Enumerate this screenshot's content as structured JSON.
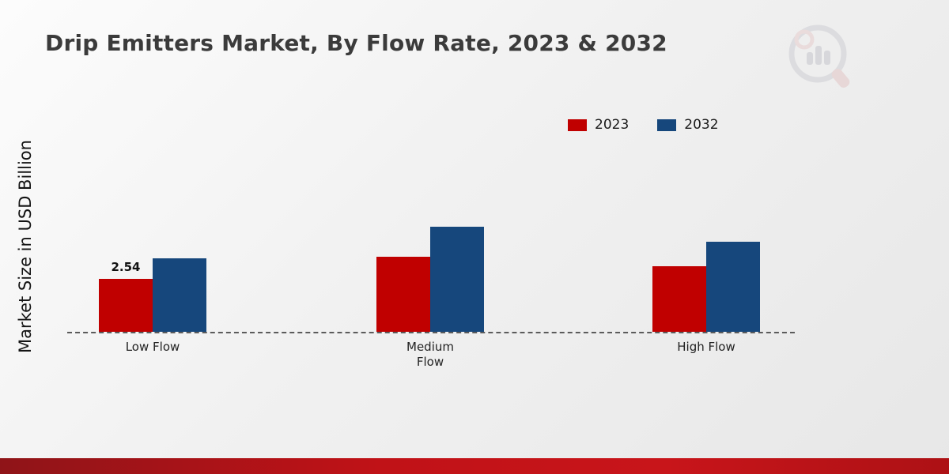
{
  "title": "Drip Emitters Market, By Flow Rate, 2023 & 2032",
  "ylabel": "Market Size in USD Billion",
  "legend": {
    "items": [
      {
        "label": "2023",
        "color": "#c00000"
      },
      {
        "label": "2032",
        "color": "#16477c"
      }
    ],
    "position": "top-right"
  },
  "colors": {
    "series_2023": "#c00000",
    "series_2032": "#16477c",
    "footer_ribbon": "#c01217",
    "title_text": "#3b3b3b"
  },
  "chart_data": {
    "type": "bar",
    "title": "Drip Emitters Market, By Flow Rate, 2023 & 2032",
    "xlabel": "",
    "ylabel": "Market Size in USD Billion",
    "categories": [
      "Low Flow",
      "Medium Flow",
      "High Flow"
    ],
    "series": [
      {
        "name": "2023",
        "color": "#c00000",
        "values": [
          2.54,
          3.6,
          3.15
        ]
      },
      {
        "name": "2032",
        "color": "#16477c",
        "values": [
          3.5,
          5.0,
          4.3
        ]
      }
    ],
    "annotations": [
      {
        "series": "2023",
        "category": "Low Flow",
        "text": "2.54"
      }
    ],
    "ylim": [
      0,
      6
    ],
    "grid": false,
    "baseline_style": "dashed",
    "legend_position": "top-right"
  }
}
